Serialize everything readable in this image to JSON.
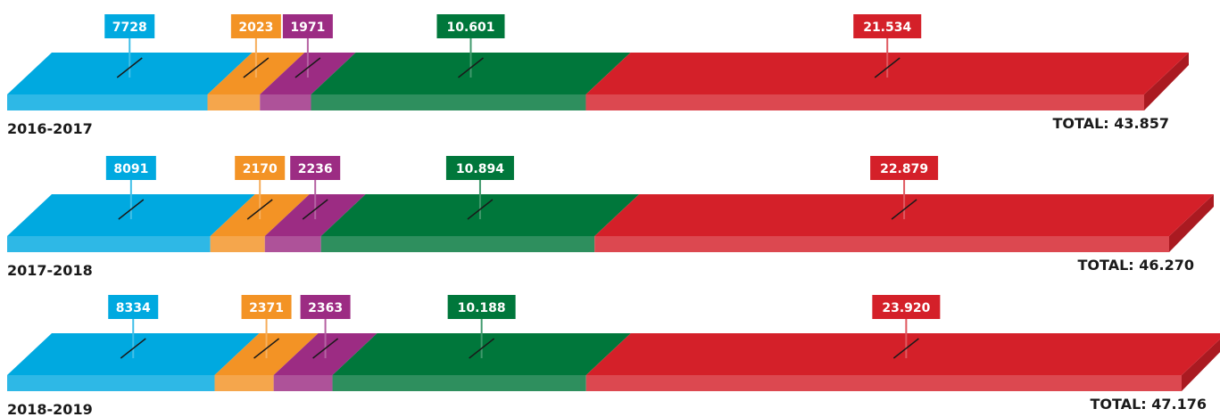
{
  "chart_data": {
    "type": "bar",
    "stacked": true,
    "orientation": "horizontal",
    "segment_colors": [
      "#00a9e0",
      "#f39325",
      "#9c2c83",
      "#00773b",
      "#d42029"
    ],
    "rows": [
      {
        "period": "2016-2017",
        "labels": [
          "7728",
          "2023",
          "1971",
          "10.601",
          "21.534"
        ],
        "values": [
          7728,
          2023,
          1971,
          10601,
          21534
        ],
        "total_label": "TOTAL: 43.857",
        "total": 43857
      },
      {
        "period": "2017-2018",
        "labels": [
          "8091",
          "2170",
          "2236",
          "10.894",
          "22.879"
        ],
        "values": [
          8091,
          2170,
          2236,
          10894,
          22879
        ],
        "total_label": "TOTAL: 46.270",
        "total": 46270
      },
      {
        "period": "2018-2019",
        "labels": [
          "8334",
          "2371",
          "2363",
          "10.188",
          "23.920"
        ],
        "values": [
          8334,
          2371,
          2363,
          10188,
          23920
        ],
        "total_label": "TOTAL: 47.176",
        "total": 47176
      }
    ]
  }
}
